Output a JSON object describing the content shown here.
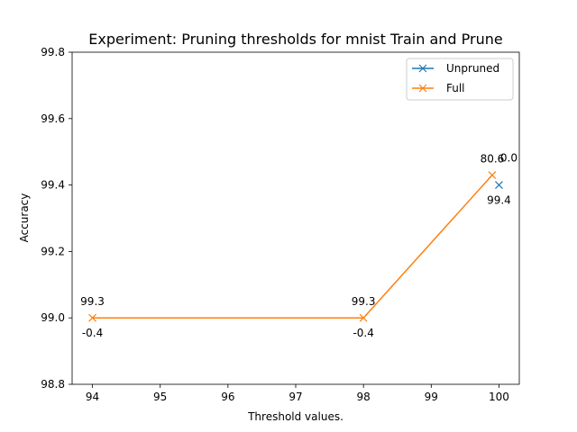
{
  "chart_data": {
    "type": "line",
    "title": "Experiment: Pruning thresholds for mnist Train and Prune",
    "xlabel": "Threshold values.",
    "ylabel": "Accuracy",
    "xlim": [
      93.7,
      100.3
    ],
    "ylim": [
      98.8,
      99.8
    ],
    "xticks": [
      "94",
      "95",
      "96",
      "97",
      "98",
      "99",
      "100"
    ],
    "yticks": [
      "98.8",
      "99.0",
      "99.2",
      "99.4",
      "99.6",
      "99.8"
    ],
    "grid": false,
    "legend_position": "top-right",
    "series": [
      {
        "name": "Unpruned",
        "color": "#1f77b4",
        "marker": "x",
        "points": [
          {
            "x": 100,
            "y": 99.4,
            "label": "99.4",
            "label_pos": "below"
          }
        ]
      },
      {
        "name": "Full",
        "color": "#ff7f0e",
        "marker": "x",
        "points": [
          {
            "x": 94,
            "y": 99.0,
            "label": "99.3",
            "label_pos": "above"
          },
          {
            "x": 98,
            "y": 99.0,
            "label": "99.3",
            "label_pos": "above"
          },
          {
            "x": 99.9,
            "y": 99.43,
            "label": "80.6",
            "label_pos": "above"
          }
        ]
      }
    ],
    "annotations": [
      {
        "x": 94,
        "y": 99.0,
        "text": "-0.4",
        "pos": "below"
      },
      {
        "x": 98,
        "y": 99.0,
        "text": "-0.4",
        "pos": "below"
      },
      {
        "x": 100,
        "y": 99.4,
        "text": "0.0",
        "pos": "above"
      }
    ]
  }
}
